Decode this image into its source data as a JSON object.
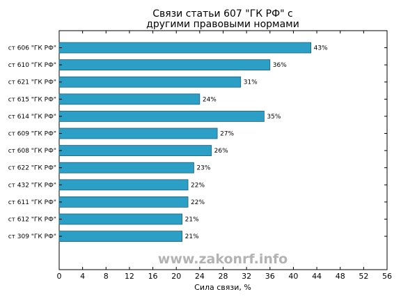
{
  "chart_data": {
    "type": "bar",
    "orientation": "horizontal",
    "title": "Связи статьи 607 \"ГК РФ\" с\nдругими правовыми нормами",
    "xlabel": "Сила связи, %",
    "ylabel": "",
    "xlim": [
      0,
      56
    ],
    "xticks": [
      0,
      4,
      8,
      12,
      16,
      20,
      24,
      28,
      32,
      36,
      40,
      44,
      48,
      52,
      56
    ],
    "grid": false,
    "categories": [
      "ст 606 \"ГК РФ\"",
      "ст 610 \"ГК РФ\"",
      "ст 621 \"ГК РФ\"",
      "ст 615 \"ГК РФ\"",
      "ст 614 \"ГК РФ\"",
      "ст 609 \"ГК РФ\"",
      "ст 608 \"ГК РФ\"",
      "ст 622 \"ГК РФ\"",
      "ст 432 \"ГК РФ\"",
      "ст 611 \"ГК РФ\"",
      "ст 612 \"ГК РФ\"",
      "ст 309 \"ГК РФ\""
    ],
    "values": [
      43,
      36,
      31,
      24,
      35,
      27,
      26,
      23,
      22,
      22,
      21,
      21
    ],
    "data_labels": [
      "43%",
      "36%",
      "31%",
      "24%",
      "35%",
      "27%",
      "26%",
      "23%",
      "22%",
      "22%",
      "21%",
      "21%"
    ],
    "bar_color": "#2b9fc6",
    "bar_edge_color": "#1f5f78"
  },
  "watermark": "www.zakonrf.info"
}
